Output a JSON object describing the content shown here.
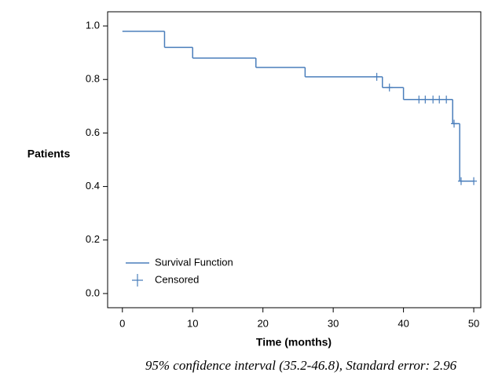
{
  "chart_data": {
    "type": "step",
    "xlabel": "Time (months)",
    "ylabel": "Patients",
    "caption": "95% confidence interval (35.2-46.8), Standard error: 2.96",
    "xlim": [
      -2.1,
      51
    ],
    "ylim": [
      -0.053,
      1.053
    ],
    "xticks": [
      0,
      10,
      20,
      30,
      40,
      50
    ],
    "yticks": [
      {
        "value": 0,
        "label": "0.0"
      },
      0.2,
      0.4,
      0.6,
      0.8,
      {
        "value": 1,
        "label": "1.0"
      }
    ],
    "series": [
      {
        "name": "Survival Function",
        "color": "#4a7ebb",
        "x": [
          0,
          6,
          10,
          19,
          26,
          37,
          40,
          47,
          48,
          50
        ],
        "values": [
          0.98,
          0.92,
          0.88,
          0.845,
          0.81,
          0.77,
          0.725,
          0.635,
          0.42,
          0.42
        ]
      },
      {
        "name": "Censored",
        "color": "#4a7ebb",
        "x": [
          36.2,
          38,
          42.2,
          43.1,
          44.2,
          45.1,
          46.1,
          47.2,
          48.2,
          50
        ],
        "values": [
          0.81,
          0.77,
          0.725,
          0.725,
          0.725,
          0.725,
          0.725,
          0.635,
          0.42,
          0.42
        ]
      }
    ]
  }
}
